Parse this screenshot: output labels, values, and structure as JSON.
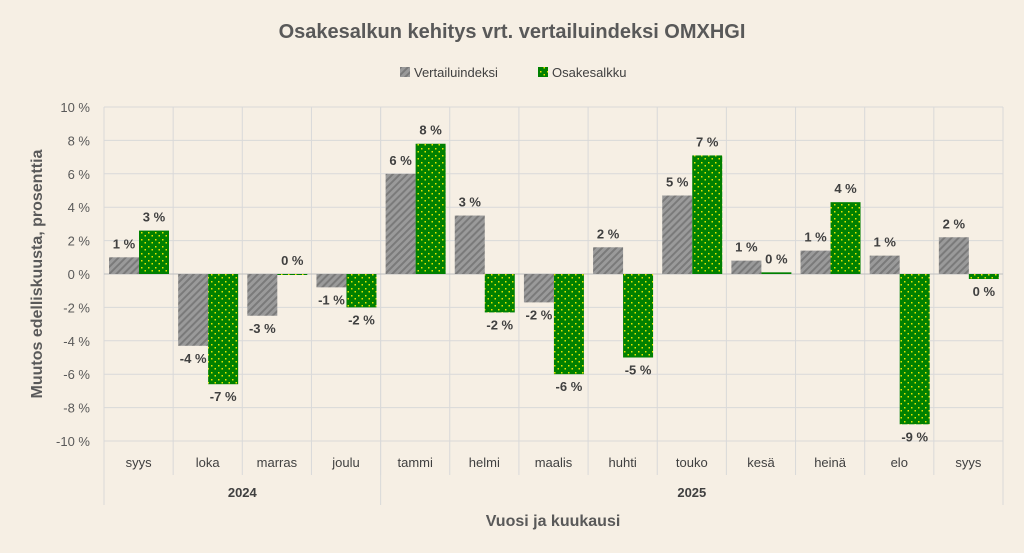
{
  "chart_data": {
    "type": "bar",
    "title": "Osakesalkun kehitys vrt. vertailuindeksi OMXHGI",
    "xlabel": "Vuosi ja kuukausi",
    "ylabel": "Muutos edelliskuusta, prosenttia",
    "ylim": [
      -10,
      10
    ],
    "yticks": [
      10,
      8,
      6,
      4,
      2,
      0,
      -2,
      -4,
      -6,
      -8,
      -10
    ],
    "ytick_labels": [
      "10 %",
      "8 %",
      "6 %",
      "4 %",
      "2 %",
      "0 %",
      "-2 %",
      "-4 %",
      "-6 %",
      "-8 %",
      "-10 %"
    ],
    "categories": [
      "syys",
      "loka",
      "marras",
      "joulu",
      "tammi",
      "helmi",
      "maalis",
      "huhti",
      "touko",
      "kesä",
      "heinä",
      "elo",
      "syys"
    ],
    "groups": [
      {
        "label": "2024",
        "count": 4
      },
      {
        "label": "2025",
        "count": 9
      }
    ],
    "legend_position": "top",
    "series": [
      {
        "name": "Vertailuindeksi",
        "color": "#8c8c8c",
        "values": [
          1.0,
          -4.3,
          -2.5,
          -0.8,
          6.0,
          3.5,
          -1.7,
          1.6,
          4.7,
          0.8,
          1.4,
          1.1,
          2.2
        ],
        "labels": [
          "1 %",
          "-4 %",
          "-3 %",
          "-1 %",
          "6 %",
          "3 %",
          "-2 %",
          "2 %",
          "5 %",
          "1 %",
          "1 %",
          "1 %",
          "2 %"
        ]
      },
      {
        "name": "Osakesalkku",
        "color": "#008000",
        "values": [
          2.6,
          -6.6,
          0.0,
          -2.0,
          7.8,
          -2.3,
          -6.0,
          -5.0,
          7.1,
          0.1,
          4.3,
          -9.0,
          -0.3
        ],
        "labels": [
          "3 %",
          "-7 %",
          "0 %",
          "-2 %",
          "8 %",
          "-2 %",
          "-6 %",
          "-5 %",
          "7 %",
          "0 %",
          "4 %",
          "-9 %",
          "0 %"
        ]
      }
    ]
  }
}
